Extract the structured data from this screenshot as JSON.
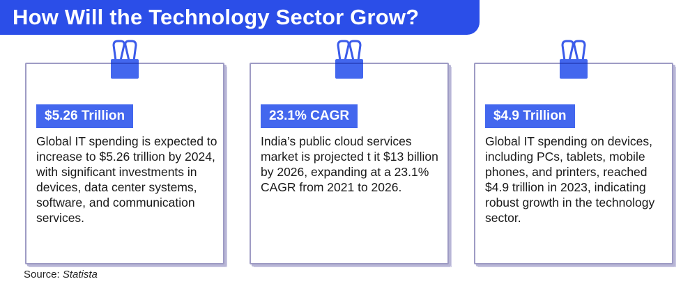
{
  "title": "How Will the Technology Sector Grow?",
  "cards": [
    {
      "badge": "$5.26 Trillion",
      "text": "Global IT spending is expected to increase to $5.26 trillion by 2024, with significant investments in devices, data center systems, software, and communication services."
    },
    {
      "badge": "23.1% CAGR",
      "text": "India’s public cloud services market is projected t it $13 billion by 2026, expanding at a 23.1% CAGR from 2021 to 2026."
    },
    {
      "badge": "$4.9 Trillion",
      "text": "Global IT spending on devices, including PCs, tablets, mobile phones, and printers, reached $4.9 trillion in 2023, indicating robust growth in the technology sector."
    }
  ],
  "source": {
    "label": "Source:",
    "name": "Statista"
  },
  "colors": {
    "title_bg": "#2b4ee8",
    "badge_bg": "#4367ee",
    "clip": "#3b5bea"
  }
}
